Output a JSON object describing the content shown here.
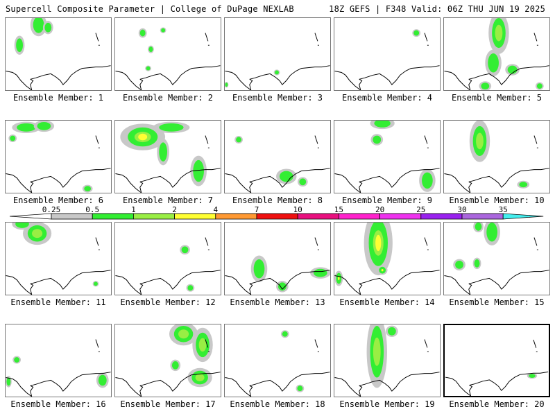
{
  "header": {
    "title_left": "Supercell Composite Parameter | College of DuPage NEXLAB",
    "title_right": "18Z GEFS | F348 Valid: 06Z THU JUN 19 2025"
  },
  "colorbar": {
    "ticks": [
      "0.25",
      "0.5",
      "1",
      "2",
      "4",
      "7",
      "10",
      "15",
      "20",
      "25",
      "30",
      "35"
    ],
    "colors": [
      "#c8c8c8",
      "#33ee33",
      "#99ee44",
      "#ffff33",
      "#ff9933",
      "#ee1111",
      "#e8117f",
      "#ff22cc",
      "#ee33ee",
      "#9922ee",
      "#aa66dd",
      "#44eeee"
    ]
  },
  "panels": [
    {
      "label": "Ensemble Member: 1"
    },
    {
      "label": "Ensemble Member: 2"
    },
    {
      "label": "Ensemble Member: 3"
    },
    {
      "label": "Ensemble Member: 4"
    },
    {
      "label": "Ensemble Member: 5"
    },
    {
      "label": "Ensemble Member: 6"
    },
    {
      "label": "Ensemble Member: 7"
    },
    {
      "label": "Ensemble Member: 8"
    },
    {
      "label": "Ensemble Member: 9"
    },
    {
      "label": "Ensemble Member: 10"
    },
    {
      "label": "Ensemble Member: 11"
    },
    {
      "label": "Ensemble Member: 12"
    },
    {
      "label": "Ensemble Member: 13"
    },
    {
      "label": "Ensemble Member: 14"
    },
    {
      "label": "Ensemble Member: 15"
    },
    {
      "label": "Ensemble Member: 16"
    },
    {
      "label": "Ensemble Member: 17"
    },
    {
      "label": "Ensemble Member: 18"
    },
    {
      "label": "Ensemble Member: 19"
    },
    {
      "label": "Ensemble Member: 20"
    }
  ]
}
